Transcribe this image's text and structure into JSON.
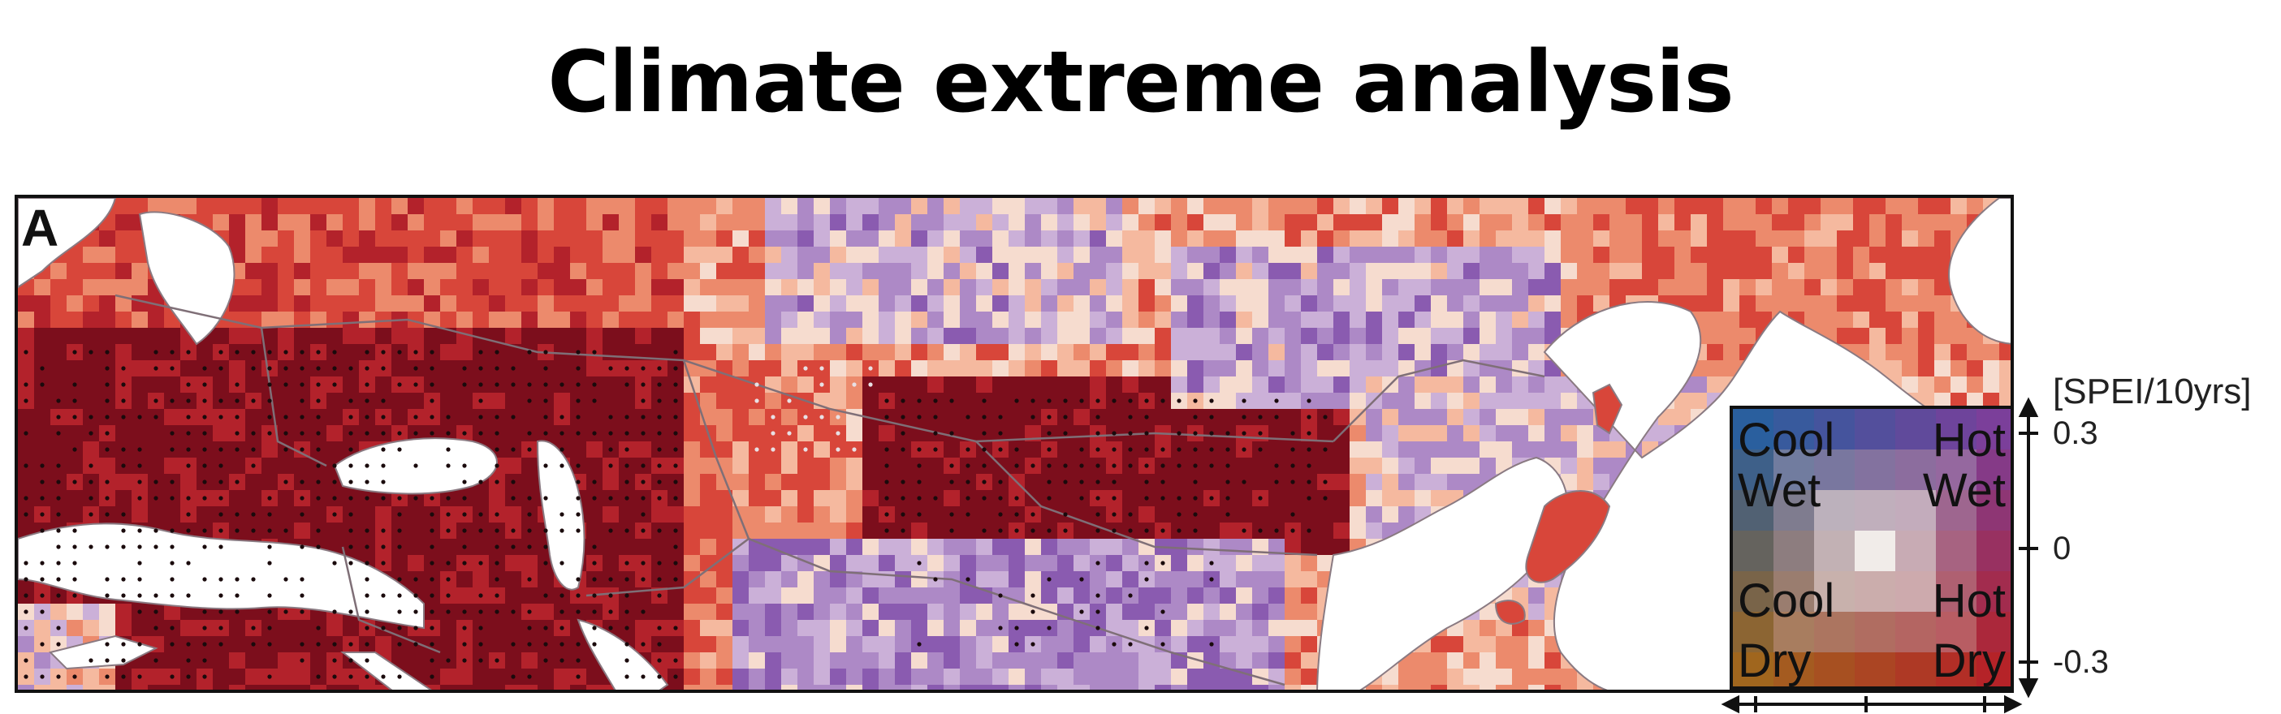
{
  "title": "Climate extreme analysis",
  "map": {
    "panel_label": "A"
  },
  "legend": {
    "unit": "[SPEI/10yrs]",
    "quadrants": {
      "top_left": [
        "Cool",
        "Wet"
      ],
      "top_right": [
        "Hot",
        "Wet"
      ],
      "bottom_left": [
        "Cool",
        "Dry"
      ],
      "bottom_right": [
        "Hot",
        "Dry"
      ]
    },
    "y_ticks": [
      "0.3",
      "0",
      "-0.3"
    ],
    "colors": {
      "cool_wet": "#2a5f9e",
      "hot_wet": "#7b3f9a",
      "neutral": "#f1ece9",
      "cool_dry": "#a0661e",
      "hot_dry": "#b52328"
    }
  }
}
